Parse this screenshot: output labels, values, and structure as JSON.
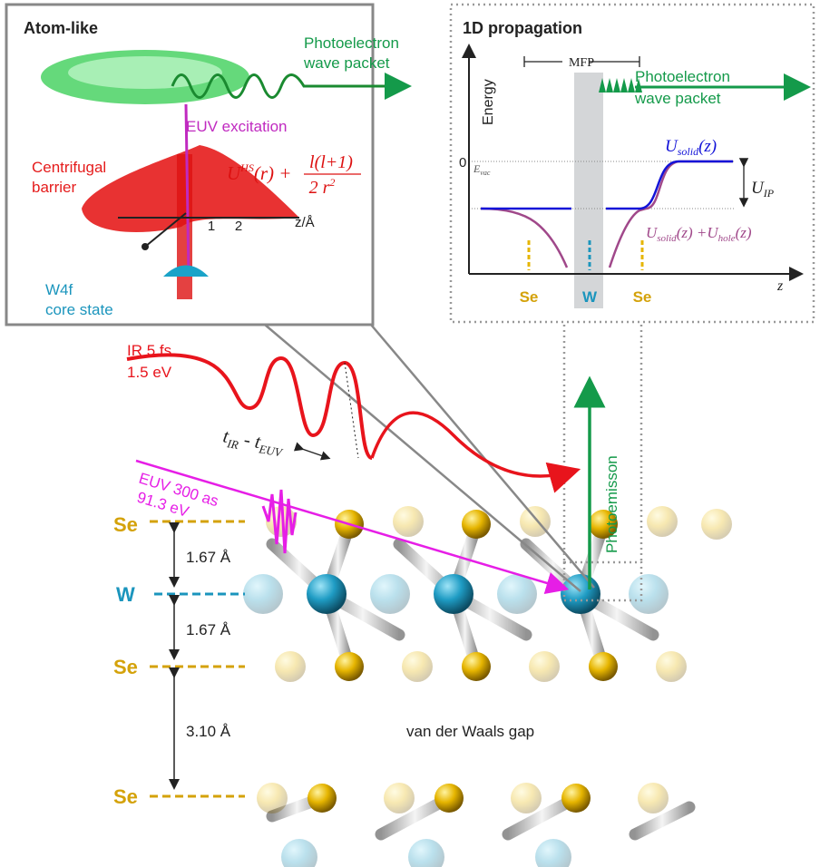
{
  "atom_panel": {
    "title": "Atom-like",
    "wave_packet": [
      "Photoelectron",
      "wave packet"
    ],
    "euv_excitation": "EUV excitation",
    "barrier": [
      "Centrifugal",
      "barrier"
    ],
    "potential": {
      "u": "U",
      "sup": "HS",
      "r": "(r) +",
      "num": "l(l+1)",
      "den": "2 r",
      "den_sup": "2"
    },
    "axis_ticks": [
      "1",
      "2"
    ],
    "axis_label": "z/Å",
    "core": [
      "W4f",
      "core state"
    ]
  },
  "propagation_panel": {
    "title": "1D propagation",
    "mfp": "MFP",
    "y_label": "Energy",
    "wave_packet": [
      "Photoelectron",
      "wave packet"
    ],
    "zero": "0",
    "e_vac": {
      "main": "E",
      "sub": "vac"
    },
    "u_solid": {
      "main": "U",
      "sub": "solid",
      "rest": "(z)"
    },
    "u_ip": {
      "main": "U",
      "sub": "IP"
    },
    "u_sum": [
      {
        "main": "U",
        "sub": "solid",
        "rest": "(z) +"
      },
      {
        "main": "U",
        "sub": "hole",
        "rest": "(z)"
      }
    ],
    "atoms": [
      "Se",
      "W",
      "Se"
    ],
    "x_label": "z"
  },
  "pulses": {
    "ir": [
      "IR 5 fs",
      "1.5 eV"
    ],
    "delay": {
      "t1": "t",
      "s1": "IR",
      "dash": " - ",
      "t2": "t",
      "s2": "EUV"
    },
    "euv": [
      "EUV 300 as",
      "91.3 eV"
    ],
    "photoemission": "Photoemisson"
  },
  "layers": {
    "labels": [
      "Se",
      "W",
      "Se",
      "Se"
    ],
    "spacings": [
      "1.67 Å",
      "1.67 Å",
      "3.10 Å"
    ],
    "gap": "van der Waals gap"
  }
}
